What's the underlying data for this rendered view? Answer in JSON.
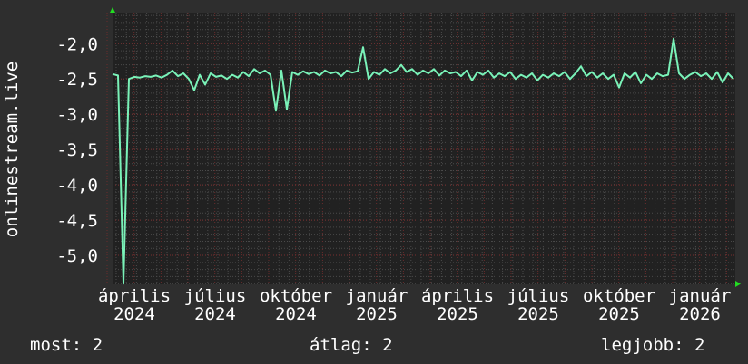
{
  "chart_data": {
    "type": "line",
    "ylabel": "onlinestream.live",
    "ylim": [
      -5.41,
      -1.56
    ],
    "y_ticks": [
      "-2,0",
      "-2,5",
      "-3,0",
      "-3,5",
      "-4,0",
      "-4,5",
      "-5,0"
    ],
    "y_tick_values": [
      -2.0,
      -2.5,
      -3.0,
      -3.5,
      -4.0,
      -4.5,
      -5.0
    ],
    "x_tick_labels": [
      "április 2024",
      "július 2024",
      "október 2024",
      "január 2025",
      "április 2025",
      "július 2025",
      "október 2025",
      "január 2026"
    ],
    "grid": true,
    "series": [
      {
        "color": "#7af2b8",
        "values": [
          -2.43,
          -2.45,
          -5.4,
          -2.5,
          -2.47,
          -2.48,
          -2.46,
          -2.47,
          -2.45,
          -2.48,
          -2.44,
          -2.38,
          -2.46,
          -2.42,
          -2.5,
          -2.66,
          -2.44,
          -2.58,
          -2.42,
          -2.47,
          -2.45,
          -2.5,
          -2.44,
          -2.48,
          -2.4,
          -2.46,
          -2.36,
          -2.42,
          -2.38,
          -2.44,
          -2.95,
          -2.38,
          -2.93,
          -2.4,
          -2.44,
          -2.39,
          -2.43,
          -2.4,
          -2.45,
          -2.38,
          -2.42,
          -2.4,
          -2.46,
          -2.38,
          -2.41,
          -2.39,
          -2.05,
          -2.5,
          -2.4,
          -2.44,
          -2.36,
          -2.42,
          -2.38,
          -2.3,
          -2.4,
          -2.36,
          -2.44,
          -2.38,
          -2.42,
          -2.36,
          -2.45,
          -2.38,
          -2.42,
          -2.4,
          -2.46,
          -2.38,
          -2.52,
          -2.4,
          -2.44,
          -2.38,
          -2.48,
          -2.42,
          -2.46,
          -2.4,
          -2.5,
          -2.44,
          -2.48,
          -2.42,
          -2.52,
          -2.44,
          -2.48,
          -2.42,
          -2.46,
          -2.4,
          -2.5,
          -2.42,
          -2.32,
          -2.46,
          -2.4,
          -2.48,
          -2.42,
          -2.5,
          -2.44,
          -2.62,
          -2.42,
          -2.48,
          -2.4,
          -2.56,
          -2.44,
          -2.5,
          -2.42,
          -2.46,
          -2.44,
          -1.93,
          -2.42,
          -2.5,
          -2.44,
          -2.4,
          -2.46,
          -2.42,
          -2.5,
          -2.4,
          -2.55,
          -2.42,
          -2.5
        ]
      }
    ]
  },
  "footer": {
    "current": "most: 2",
    "average": "átlag: 2",
    "best": "legjobb: 2"
  },
  "colors": {
    "background": "#2e2e2e",
    "plot": "#212121",
    "line": "#7af2b8",
    "arrow": "#22dd22"
  }
}
